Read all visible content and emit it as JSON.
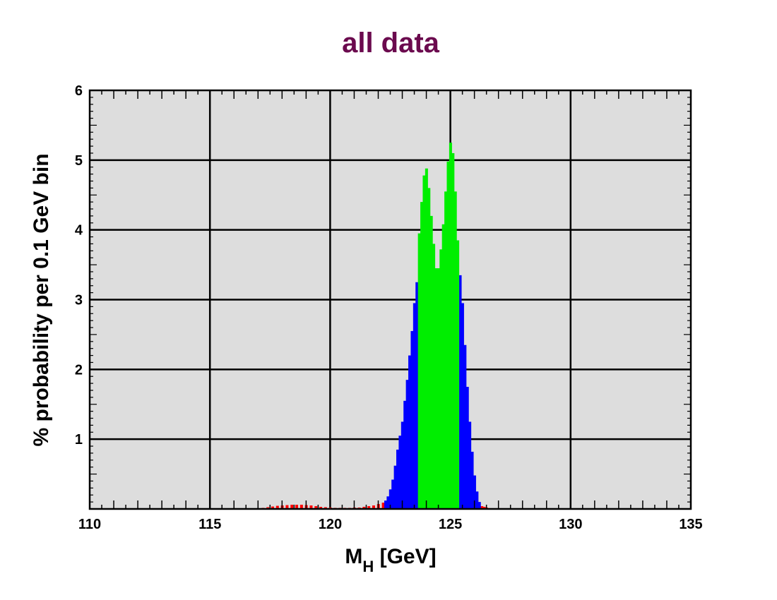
{
  "chart_data": {
    "type": "bar",
    "title": "all data",
    "title_color": "#6b0a4e",
    "xlabel_main": "M",
    "xlabel_sub": "H",
    "xlabel_unit": " [GeV]",
    "ylabel": "% probability per 0.1 GeV bin",
    "xlim": [
      110,
      135
    ],
    "ylim": [
      0,
      6
    ],
    "x_ticks": [
      "110",
      "115",
      "120",
      "125",
      "130",
      "135"
    ],
    "y_ticks": [
      "1",
      "2",
      "3",
      "4",
      "5",
      "6"
    ],
    "grid": true,
    "bin_width_gev": 0.1,
    "background_color": "#dddddd",
    "series": [
      {
        "color": "#ff0000",
        "x": [
          116.5,
          116.8,
          117.0,
          117.2,
          117.4,
          117.6,
          117.8,
          118.0,
          118.2,
          118.4,
          118.6,
          118.8,
          119.0,
          119.2,
          119.4,
          119.6,
          119.8,
          120.0,
          120.2,
          120.4,
          120.6,
          120.8,
          121.0,
          121.2,
          121.4,
          121.6,
          121.8,
          122.0,
          122.2,
          126.3,
          126.4,
          126.5,
          126.6
        ],
        "values": [
          0.0,
          0.005,
          0.01,
          0.015,
          0.025,
          0.035,
          0.045,
          0.05,
          0.055,
          0.06,
          0.06,
          0.06,
          0.055,
          0.05,
          0.04,
          0.03,
          0.025,
          0.02,
          0.015,
          0.015,
          0.015,
          0.015,
          0.02,
          0.02,
          0.03,
          0.04,
          0.05,
          0.07,
          0.09,
          0.04,
          0.03,
          0.02,
          0.01
        ]
      },
      {
        "color": "#0000ff",
        "x": [
          122.3,
          122.4,
          122.5,
          122.6,
          122.7,
          122.8,
          122.9,
          123.0,
          123.1,
          123.2,
          123.3,
          123.4,
          123.5,
          123.6,
          125.4,
          125.5,
          125.6,
          125.7,
          125.8,
          125.9,
          126.0,
          126.1,
          126.2
        ],
        "values": [
          0.12,
          0.18,
          0.28,
          0.42,
          0.62,
          0.85,
          1.05,
          1.25,
          1.55,
          1.85,
          2.2,
          2.55,
          2.95,
          3.25,
          3.35,
          2.95,
          2.35,
          1.75,
          1.25,
          0.82,
          0.48,
          0.25,
          0.1
        ]
      },
      {
        "color": "#00ee00",
        "x": [
          123.7,
          123.8,
          123.9,
          124.0,
          124.1,
          124.2,
          124.3,
          124.4,
          124.5,
          124.6,
          124.7,
          124.8,
          124.9,
          125.0,
          125.1,
          125.2,
          125.3
        ],
        "values": [
          3.95,
          4.4,
          4.78,
          4.88,
          4.6,
          4.2,
          3.8,
          3.45,
          3.45,
          3.72,
          4.08,
          4.55,
          4.98,
          5.25,
          5.1,
          4.55,
          3.85
        ]
      }
    ]
  }
}
